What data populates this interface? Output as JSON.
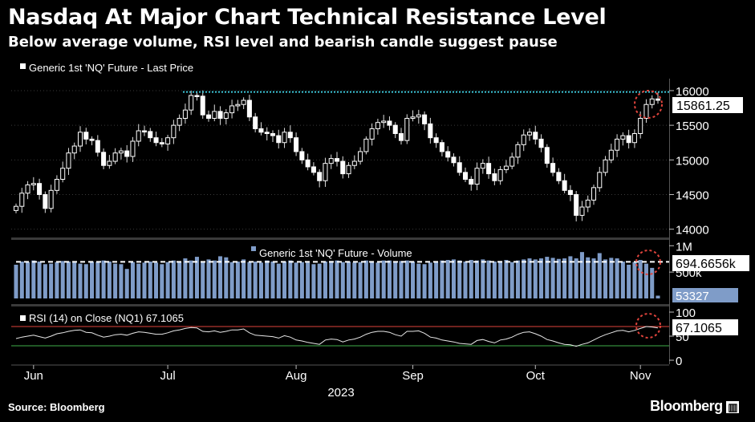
{
  "title": "Nasdaq At Major Chart Technical Resistance Level",
  "subtitle": "Below average volume, RSI level and bearish candle suggest pause",
  "source": "Source: Bloomberg",
  "brand": "Bloomberg",
  "colors": {
    "background": "#000000",
    "resistance": "#3cc6d8",
    "volume_bar": "#7f9cc8",
    "rsi_upper": "#e0443c",
    "rsi_lower": "#3fae4a",
    "highlight_circle": "#e0443c"
  },
  "chart_data": [
    {
      "type": "candlestick",
      "legend": "Generic 1st 'NQ' Future - Last Price",
      "yticks": [
        "16000",
        "15500",
        "15000",
        "14500",
        "14000"
      ],
      "ylim": [
        13950,
        16150
      ],
      "last_value_label": "15861.25",
      "resistance_level": 15980,
      "closes": [
        14330,
        14520,
        14640,
        14660,
        14500,
        14300,
        14560,
        14720,
        14880,
        15100,
        15200,
        15400,
        15300,
        15280,
        15110,
        14920,
        14980,
        15100,
        15130,
        15050,
        15270,
        15420,
        15410,
        15320,
        15250,
        15230,
        15320,
        15500,
        15600,
        15720,
        15930,
        15920,
        15650,
        15600,
        15700,
        15600,
        15680,
        15780,
        15800,
        15860,
        15620,
        15450,
        15400,
        15380,
        15350,
        15250,
        15400,
        15320,
        15120,
        15000,
        14900,
        14820,
        14700,
        14950,
        15020,
        14980,
        14800,
        14920,
        14980,
        15120,
        15300,
        15450,
        15540,
        15560,
        15500,
        15380,
        15280,
        15600,
        15620,
        15650,
        15520,
        15320,
        15250,
        15120,
        15040,
        14960,
        14820,
        14720,
        14650,
        14880,
        14950,
        14800,
        14700,
        14860,
        14910,
        15040,
        15220,
        15360,
        15400,
        15300,
        15180,
        14950,
        14820,
        14700,
        14560,
        14500,
        14200,
        14320,
        14420,
        14600,
        14820,
        15000,
        15140,
        15300,
        15350,
        15250,
        15380,
        15600,
        15800,
        15880,
        15861
      ],
      "x_month_labels": [
        "Jun",
        "Jul",
        "Aug",
        "Sep",
        "Oct",
        "Nov"
      ],
      "x_year_label": "2023"
    },
    {
      "type": "bar",
      "legend": "Generic 1st 'NQ' Future - Volume",
      "yticks": [
        "1M",
        "500k"
      ],
      "average_label": "694.6656k",
      "last_value_label": "53327",
      "values": [
        640,
        700,
        690,
        720,
        700,
        650,
        660,
        690,
        710,
        700,
        680,
        660,
        650,
        700,
        690,
        720,
        700,
        660,
        650,
        560,
        690,
        660,
        680,
        700,
        680,
        650,
        690,
        720,
        690,
        760,
        720,
        790,
        700,
        740,
        720,
        800,
        780,
        690,
        700,
        740,
        690,
        700,
        680,
        720,
        700,
        660,
        700,
        720,
        680,
        690,
        680,
        650,
        660,
        700,
        710,
        720,
        690,
        700,
        680,
        690,
        720,
        700,
        680,
        720,
        720,
        690,
        710,
        720,
        700,
        660,
        650,
        680,
        700,
        720,
        730,
        740,
        720,
        700,
        730,
        720,
        740,
        720,
        700,
        710,
        730,
        690,
        720,
        740,
        760,
        740,
        760,
        790,
        770,
        750,
        760,
        800,
        760,
        880,
        780,
        760,
        860,
        740,
        770,
        760,
        700,
        640,
        690,
        730,
        660,
        580,
        53
      ]
    },
    {
      "type": "line",
      "legend": "RSI (14)  on Close (NQ1) 67.1065",
      "yticks": [
        "100",
        "50",
        "0"
      ],
      "ylim": [
        0,
        100
      ],
      "upper_band": 70,
      "lower_band": 30,
      "last_value_label": "67.1065",
      "values": [
        45,
        48,
        50,
        52,
        49,
        46,
        50,
        55,
        57,
        60,
        62,
        63,
        58,
        57,
        52,
        48,
        50,
        53,
        54,
        52,
        56,
        59,
        58,
        56,
        54,
        54,
        57,
        61,
        63,
        66,
        68,
        67,
        60,
        59,
        61,
        58,
        60,
        63,
        63,
        65,
        57,
        52,
        51,
        50,
        49,
        46,
        51,
        48,
        42,
        40,
        37,
        35,
        33,
        42,
        44,
        43,
        38,
        42,
        44,
        48,
        54,
        58,
        60,
        60,
        58,
        53,
        50,
        60,
        60,
        61,
        56,
        48,
        46,
        42,
        40,
        38,
        35,
        34,
        33,
        41,
        43,
        39,
        36,
        42,
        44,
        48,
        54,
        58,
        59,
        55,
        50,
        43,
        40,
        36,
        33,
        32,
        29,
        33,
        36,
        42,
        48,
        53,
        57,
        61,
        62,
        59,
        62,
        66,
        70,
        69,
        67
      ]
    }
  ]
}
